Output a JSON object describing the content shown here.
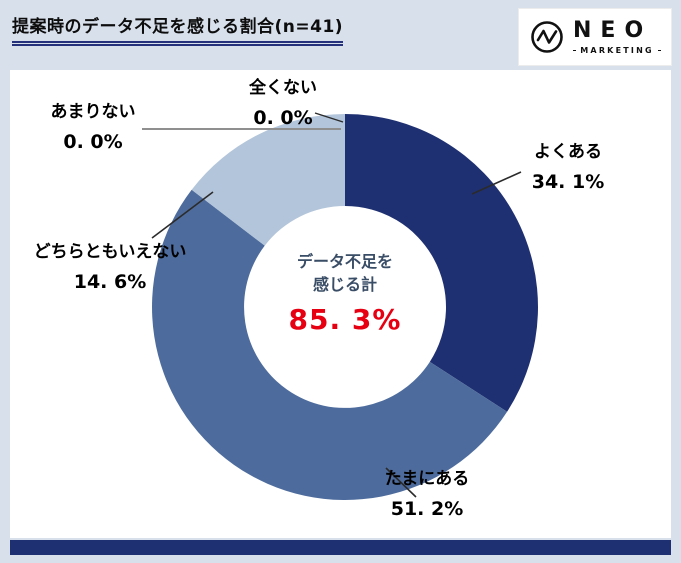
{
  "page": {
    "background": "#d8e0eb",
    "accent_navy": "#1f3072"
  },
  "header": {
    "title": "提案時のデータ不足を感じる割合(n=41)",
    "logo": {
      "name": "NEO",
      "sub": "MARKETING"
    }
  },
  "chart_data": {
    "type": "pie",
    "subtype": "donut",
    "title": "提案時のデータ不足を感じる割合(n=41)",
    "sample_size": "n=41",
    "categories": [
      "よくある",
      "たまにある",
      "どちらともいえない",
      "あまりない",
      "全くない"
    ],
    "values": [
      34.1,
      51.2,
      14.6,
      0.0,
      0.0
    ],
    "display_values": [
      "34. 1%",
      "51. 2%",
      "14. 6%",
      "0. 0%",
      "0. 0%"
    ],
    "colors": [
      "#1f3072",
      "#4d6c9d",
      "#b3c5da",
      "#b3c5da",
      "#b3c5da"
    ],
    "start_angle_deg": 0,
    "direction": "clockwise",
    "center_annotation": {
      "label": "データ不足を感じる計",
      "value": 85.3,
      "display_value": "85. 3%",
      "value_color": "#e60012"
    },
    "legend": "none"
  },
  "callouts": {
    "yokuaru": {
      "label": "よくある",
      "value": "34. 1%"
    },
    "tamani": {
      "label": "たまにある",
      "value": "51. 2%"
    },
    "dochira": {
      "label": "どちらともいえない",
      "value": "14. 6%"
    },
    "amari": {
      "label": "あまりない",
      "value": "0. 0%"
    },
    "mattaku": {
      "label": "全くない",
      "value": "0. 0%"
    }
  },
  "center": {
    "line1": "データ不足を",
    "line2": "感じる計",
    "value": "85. 3%"
  }
}
